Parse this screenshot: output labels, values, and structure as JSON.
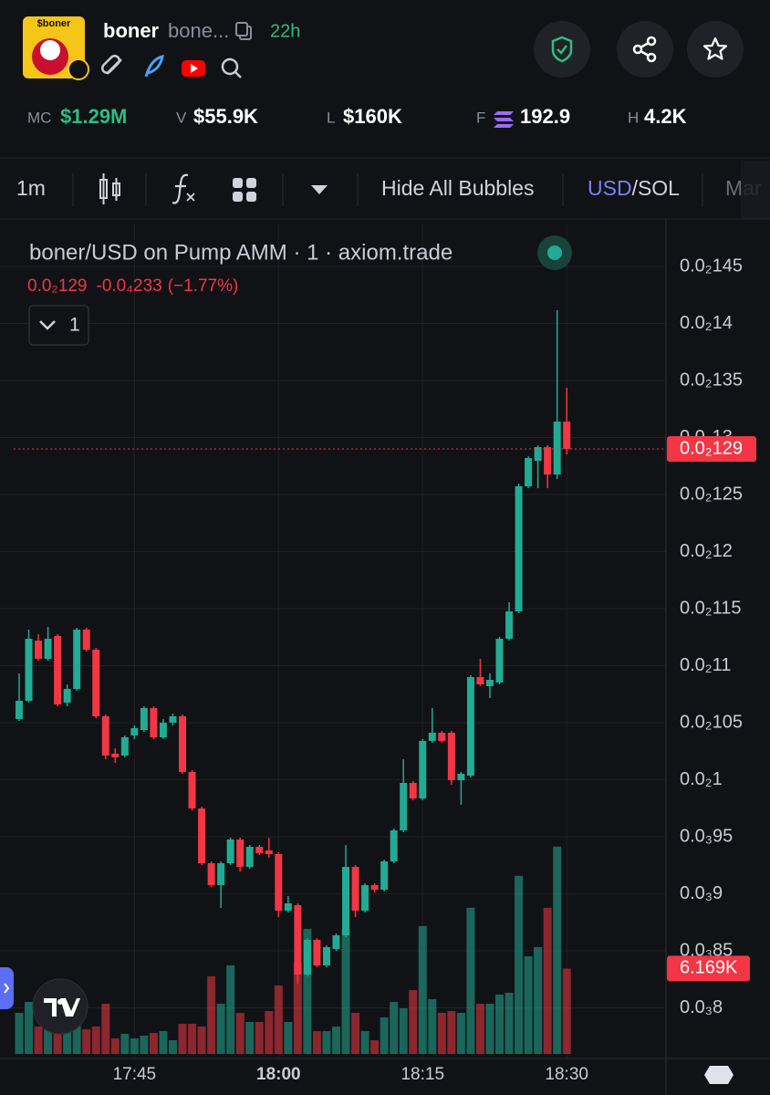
{
  "header": {
    "avatar_text": "$boner",
    "token": "boner",
    "ticker_short": "bone...",
    "age": "22h",
    "stats": [
      {
        "label": "MC",
        "value": "$1.29M"
      },
      {
        "label": "V",
        "value": "$55.9K"
      },
      {
        "label": "L",
        "value": "$160K"
      },
      {
        "label": "F",
        "value": "192.9"
      },
      {
        "label": "H",
        "value": "4.2K"
      }
    ]
  },
  "toolbar": {
    "interval": "1m",
    "bubbles": "Hide All Bubbles",
    "currency": "USD",
    "currency_alt": "/SOL",
    "tab_cut": "Mar"
  },
  "chart_data": {
    "type": "candlestick",
    "title": "boner/USD on Pump AMM · 1 · axiom.trade",
    "readout": {
      "close": "0.0₂129",
      "change": "-0.0₄233",
      "change_pct": "(−1.77%)"
    },
    "indicator_toggle": "1",
    "up_color": "#22ab94",
    "down_color": "#f23645",
    "grid": true,
    "x": [
      "17:33",
      "17:34",
      "17:35",
      "17:36",
      "17:37",
      "17:38",
      "17:39",
      "17:40",
      "17:41",
      "17:42",
      "17:43",
      "17:44",
      "17:45",
      "17:46",
      "17:47",
      "17:48",
      "17:49",
      "17:50",
      "17:51",
      "17:52",
      "17:53",
      "17:54",
      "17:55",
      "17:56",
      "17:57",
      "17:58",
      "17:59",
      "18:00",
      "18:01",
      "18:02",
      "18:03",
      "18:04",
      "18:05",
      "18:06",
      "18:07",
      "18:08",
      "18:09",
      "18:10",
      "18:11",
      "18:12",
      "18:13",
      "18:14",
      "18:15",
      "18:16",
      "18:17",
      "18:18",
      "18:19",
      "18:20",
      "18:21",
      "18:22",
      "18:23",
      "18:24",
      "18:25",
      "18:26",
      "18:27",
      "18:28",
      "18:29",
      "18:30"
    ],
    "open": [
      0.0010532,
      0.0010692,
      0.001122,
      0.001106,
      0.001126,
      0.0010676,
      0.0010796,
      0.0011316,
      0.001114,
      0.0010556,
      0.0010228,
      0.0010212,
      0.0010388,
      0.0010436,
      0.0010628,
      0.0010372,
      0.00105,
      0.0010556,
      0.0010068,
      0.0009748,
      0.0009268,
      0.0009076,
      0.0009268,
      0.0009476,
      0.0009236,
      0.0009412,
      0.000938,
      0.0009348,
      0.0008852,
      0.00089,
      0.0008292,
      0.0008596,
      0.0008372,
      0.0008516,
      0.0008636,
      0.0009236,
      0.0008852,
      0.0009076,
      0.0009036,
      0.0009284,
      0.0009556,
      0.0009972,
      0.0009836,
      0.001034,
      0.0010412,
      0.0010412,
      0.0009996,
      0.0010036,
      0.00109,
      0.001082,
      0.0010852,
      0.0011236,
      0.0011476,
      0.0012572,
      0.0012796,
      0.0012916,
      0.0012676,
      0.001314
    ],
    "high": [
      0.0010932,
      0.0011316,
      0.0011276,
      0.001134,
      0.0011276,
      0.0010836,
      0.0011332,
      0.0011332,
      0.0011156,
      0.0010572,
      0.0010276,
      0.0010388,
      0.0010476,
      0.0010644,
      0.0010644,
      0.0010532,
      0.001058,
      0.0010572,
      0.0010084,
      0.0009764,
      0.0009284,
      0.0009284,
      0.0009492,
      0.0009492,
      0.0009428,
      0.0009428,
      0.0009492,
      0.0009364,
      0.000898,
      0.0008916,
      0.0008612,
      0.0008612,
      0.0008548,
      0.0008652,
      0.0009428,
      0.0009252,
      0.0009092,
      0.0009092,
      0.00093,
      0.0009572,
      0.001018,
      0.0009988,
      0.0010356,
      0.0010628,
      0.0010428,
      0.0010428,
      0.0010068,
      0.0010916,
      0.001106,
      0.0010932,
      0.0011252,
      0.0011556,
      0.0012596,
      0.0012836,
      0.0012932,
      0.0012932,
      0.0014116,
      0.0013436
    ],
    "low": [
      0.0010516,
      0.0010676,
      0.0011044,
      0.0011044,
      0.0010644,
      0.0010644,
      0.001078,
      0.0011124,
      0.001054,
      0.001018,
      0.0010148,
      0.0010196,
      0.0010356,
      0.001042,
      0.0010356,
      0.0010356,
      0.0010476,
      0.0010052,
      0.0009732,
      0.0009252,
      0.000906,
      0.0008876,
      0.0009252,
      0.0009196,
      0.000922,
      0.000934,
      0.0009316,
      0.0008796,
      0.0008836,
      0.0008212,
      0.0008276,
      0.0008356,
      0.0008356,
      0.00085,
      0.000862,
      0.0008796,
      0.0008836,
      0.0009012,
      0.000902,
      0.0009268,
      0.000954,
      0.000982,
      0.000982,
      0.0010324,
      0.0010324,
      0.0009956,
      0.000978,
      0.001002,
      0.001082,
      0.0010716,
      0.0010836,
      0.001122,
      0.001146,
      0.0012556,
      0.0012556,
      0.0012556,
      0.0012636,
      0.0012852
    ],
    "close": [
      0.0010692,
      0.0011236,
      0.001106,
      0.0011236,
      0.001066,
      0.0010796,
      0.0011316,
      0.001114,
      0.0010556,
      0.0010212,
      0.0010196,
      0.0010372,
      0.0010452,
      0.0010628,
      0.0010372,
      0.00105,
      0.0010556,
      0.0010068,
      0.0009748,
      0.0009268,
      0.0009076,
      0.0009268,
      0.0009476,
      0.0009236,
      0.0009412,
      0.0009356,
      0.0009348,
      0.0008852,
      0.0008916,
      0.0008292,
      0.0008596,
      0.0008372,
      0.0008532,
      0.0008636,
      0.0009236,
      0.0008852,
      0.0009076,
      0.0009036,
      0.0009284,
      0.0009556,
      0.0009972,
      0.0009836,
      0.001034,
      0.0010412,
      0.001034,
      0.0009996,
      0.0010052,
      0.00109,
      0.0010836,
      0.0010876,
      0.0011236,
      0.0011476,
      0.0012572,
      0.001282,
      0.0012916,
      0.0012676,
      0.001314,
      0.00129
    ],
    "volume": {
      "axis": "y2",
      "values": [
        2970,
        3762,
        1980,
        2772,
        2442,
        1650,
        2640,
        1782,
        1980,
        3630,
        1122,
        1452,
        1122,
        1320,
        1518,
        1650,
        990,
        2178,
        2178,
        1980,
        5610,
        3630,
        6402,
        2970,
        2310,
        2310,
        3102,
        4950,
        2310,
        6600,
        9042,
        1650,
        1650,
        1980,
        9042,
        2970,
        1650,
        990,
        2640,
        3762,
        3300,
        4620,
        9240,
        3960,
        2970,
        3102,
        2970,
        10560,
        3630,
        3630,
        4290,
        4422,
        12870,
        7062,
        7722,
        10560,
        14982,
        6169
      ],
      "value_labels": [
        null,
        null,
        null,
        null,
        null,
        null,
        null,
        null,
        null,
        null,
        null,
        null,
        null,
        null,
        null,
        null,
        null,
        null,
        null,
        null,
        null,
        null,
        null,
        null,
        null,
        null,
        null,
        null,
        null,
        null,
        null,
        null,
        null,
        null,
        null,
        null,
        null,
        null,
        null,
        null,
        null,
        null,
        null,
        null,
        null,
        null,
        null,
        null,
        null,
        null,
        null,
        null,
        null,
        null,
        null,
        null,
        null,
        "6.169K"
      ]
    },
    "last_price": {
      "value": 0.00129,
      "label": "0.0₂129"
    },
    "ylim": [
      0.0007596,
      0.0014876
    ],
    "yticks": [
      {
        "value": 0.00145,
        "label": "0.0₂145"
      },
      {
        "value": 0.0014,
        "label": "0.0₂14"
      },
      {
        "value": 0.00135,
        "label": "0.0₂135"
      },
      {
        "value": 0.0013,
        "label": "0.0₂13"
      },
      {
        "value": 0.00125,
        "label": "0.0₂125"
      },
      {
        "value": 0.0012,
        "label": "0.0₂12"
      },
      {
        "value": 0.00115,
        "label": "0.0₂115"
      },
      {
        "value": 0.0011,
        "label": "0.0₂11"
      },
      {
        "value": 0.00105,
        "label": "0.0₂105"
      },
      {
        "value": 0.001,
        "label": "0.0₂1"
      },
      {
        "value": 0.00095,
        "label": "0.0₃95"
      },
      {
        "value": 0.0009,
        "label": "0.0₃9"
      },
      {
        "value": 0.00085,
        "label": "0.0₃85"
      },
      {
        "value": 0.0008,
        "label": "0.0₃8"
      }
    ],
    "y2lim": [
      0,
      60000
    ],
    "xticks": [
      "17:45",
      "18:00",
      "18:15",
      "18:30"
    ]
  }
}
